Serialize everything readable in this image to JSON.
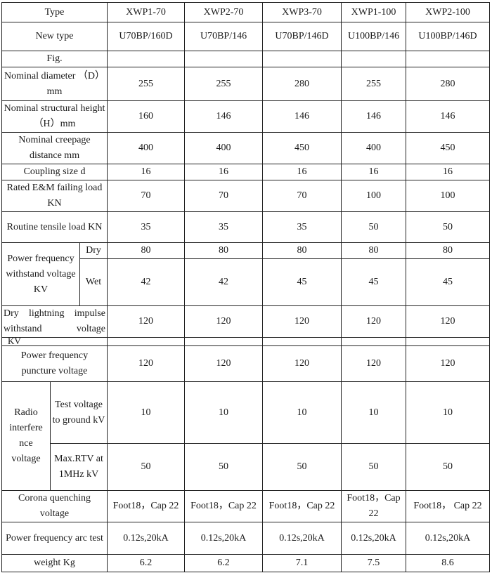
{
  "columns": [
    "XWP1-70",
    "XWP2-70",
    "XWP3-70",
    "XWP1-100",
    "XWP2-100"
  ],
  "rows": {
    "type": {
      "label": "Type",
      "values": [
        "XWP1-70",
        "XWP2-70",
        "XWP3-70",
        "XWP1-100",
        "XWP2-100"
      ]
    },
    "new_type": {
      "label": "New type",
      "values": [
        "U70BP/160D",
        "U70BP/146",
        "U70BP/146D",
        "U100BP/146",
        "U100BP/146D"
      ]
    },
    "fig": {
      "label": "Fig."
    },
    "diameter": {
      "label": "Nominal diameter （D）mm",
      "values": [
        "255",
        "255",
        "280",
        "255",
        "280"
      ]
    },
    "height": {
      "label": "Nominal structural height（H）mm",
      "values": [
        "160",
        "146",
        "146",
        "146",
        "146"
      ]
    },
    "creepage": {
      "label": "Nominal creepage distance mm",
      "values": [
        "400",
        "400",
        "450",
        "400",
        "450"
      ]
    },
    "coupling": {
      "label": "Coupling size d",
      "values": [
        "16",
        "16",
        "16",
        "16",
        "16"
      ]
    },
    "rated": {
      "label": "Rated E&M failing load KN",
      "values": [
        "70",
        "70",
        "70",
        "100",
        "100"
      ]
    },
    "routine": {
      "label": "Routine tensile load KN",
      "values": [
        "35",
        "35",
        "35",
        "50",
        "50"
      ]
    },
    "pf_withstand": {
      "label": "Power frequency withstand voltage KV",
      "dry_label": "Dry",
      "dry": [
        "80",
        "80",
        "80",
        "80",
        "80"
      ],
      "wet_label": "Wet",
      "wet": [
        "42",
        "42",
        "45",
        "45",
        "45"
      ]
    },
    "lightning": {
      "label": "Dry lightning impulse withstand voltage",
      "label_cont": "KV",
      "values": [
        "120",
        "120",
        "120",
        "120",
        "120"
      ]
    },
    "puncture": {
      "label": "Power frequency puncture voltage",
      "values": [
        "120",
        "120",
        "120",
        "120",
        "120"
      ]
    },
    "radio": {
      "label": "Radio interfere nce voltage",
      "test_label": "Test voltage to ground kV",
      "test": [
        "10",
        "10",
        "10",
        "10",
        "10"
      ],
      "rtv_label": "Max.RTV at 1MHz kV",
      "rtv": [
        "50",
        "50",
        "50",
        "50",
        "50"
      ]
    },
    "corona": {
      "label": "Corona quenching voltage",
      "values": [
        "Foot18，Cap 22",
        "Foot18，Cap 22",
        "Foot18，Cap 22",
        "Foot18，Cap 22",
        "Foot18， Cap 22"
      ]
    },
    "arc": {
      "label": "Power frequency arc test",
      "values": [
        "0.12s,20kA",
        "0.12s,20kA",
        "0.12s,20kA",
        "0.12s,20kA",
        "0.12s,20kA"
      ]
    },
    "weight": {
      "label": "weight Kg",
      "values": [
        "6.2",
        "6.2",
        "7.1",
        "7.5",
        "8.6"
      ]
    }
  }
}
